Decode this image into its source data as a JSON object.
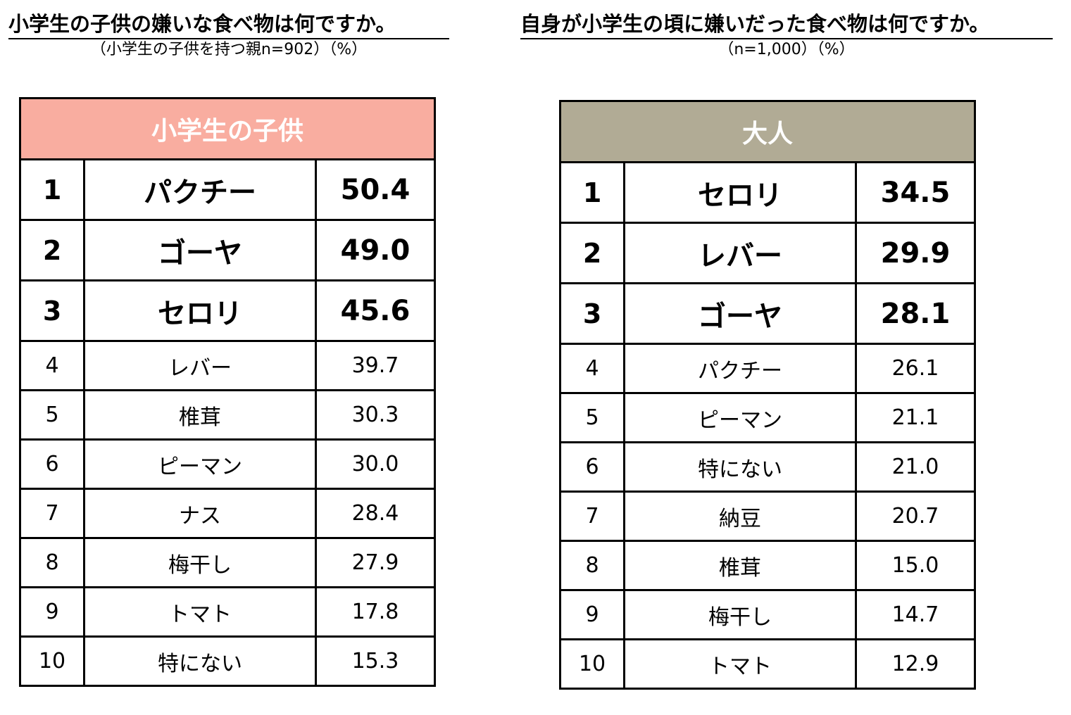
{
  "left": {
    "title": "小学生の子供の嫌いな食べ物は何ですか。",
    "subtitle": "（小学生の子供を持つ親n=902）（%）",
    "table_header": "小学生の子供",
    "header_color": "#f9ada0",
    "rows": [
      {
        "rank": "1",
        "name": "パクチー",
        "value": "50.4"
      },
      {
        "rank": "2",
        "name": "ゴーヤ",
        "value": "49.0"
      },
      {
        "rank": "3",
        "name": "セロリ",
        "value": "45.6"
      },
      {
        "rank": "4",
        "name": "レバー",
        "value": "39.7"
      },
      {
        "rank": "5",
        "name": "椎茸",
        "value": "30.3"
      },
      {
        "rank": "6",
        "name": "ピーマン",
        "value": "30.0"
      },
      {
        "rank": "7",
        "name": "ナス",
        "value": "28.4"
      },
      {
        "rank": "8",
        "name": "梅干し",
        "value": "27.9"
      },
      {
        "rank": "9",
        "name": "トマト",
        "value": "17.8"
      },
      {
        "rank": "10",
        "name": "特にない",
        "value": "15.3"
      }
    ]
  },
  "right": {
    "title": "自身が小学生の頃に嫌いだった食べ物は何ですか。",
    "subtitle": "（n=1,000）（%）",
    "table_header": "大人",
    "header_color": "#b1ab95",
    "rows": [
      {
        "rank": "1",
        "name": "セロリ",
        "value": "34.5"
      },
      {
        "rank": "2",
        "name": "レバー",
        "value": "29.9"
      },
      {
        "rank": "3",
        "name": "ゴーヤ",
        "value": "28.1"
      },
      {
        "rank": "4",
        "name": "パクチー",
        "value": "26.1"
      },
      {
        "rank": "5",
        "name": "ピーマン",
        "value": "21.1"
      },
      {
        "rank": "6",
        "name": "特にない",
        "value": "21.0"
      },
      {
        "rank": "7",
        "name": "納豆",
        "value": "20.7"
      },
      {
        "rank": "8",
        "name": "椎茸",
        "value": "15.0"
      },
      {
        "rank": "9",
        "name": "梅干し",
        "value": "14.7"
      },
      {
        "rank": "10",
        "name": "トマト",
        "value": "12.9"
      }
    ]
  }
}
